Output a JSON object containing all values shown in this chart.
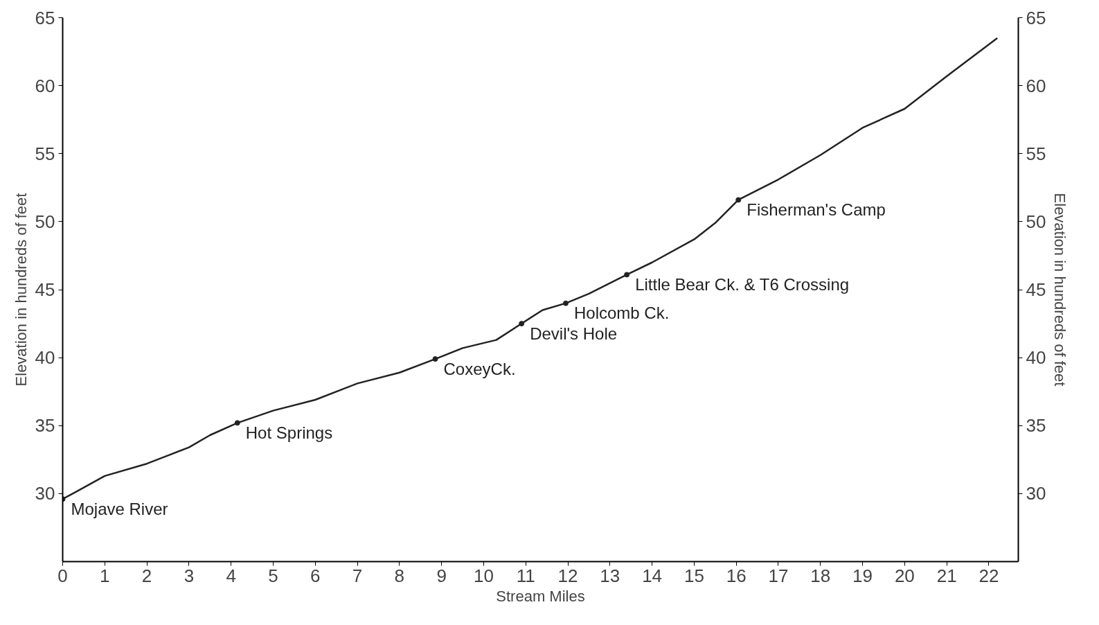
{
  "chart_data": {
    "type": "line",
    "xlabel": "Stream Miles",
    "ylabel": "Elevation in hundreds of feet",
    "y2label": "Elevation in hundreds of feet",
    "x": [
      0,
      0.3,
      1,
      2,
      2.5,
      3,
      3.5,
      4.15,
      5,
      6,
      7,
      8,
      8.85,
      9.5,
      10.3,
      10.9,
      11.4,
      11.95,
      12.5,
      13.4,
      14,
      15,
      15.5,
      16.05,
      17,
      18,
      19,
      19.5,
      20,
      21,
      22.2
    ],
    "series": [
      {
        "color": "#222222",
        "values": [
          29.6,
          30.1,
          31.3,
          32.2,
          32.8,
          33.4,
          34.3,
          35.2,
          36.1,
          36.9,
          38.1,
          38.9,
          39.9,
          40.7,
          41.3,
          42.5,
          43.5,
          44.0,
          44.7,
          46.1,
          47.0,
          48.7,
          49.9,
          51.6,
          53.1,
          54.9,
          56.9,
          57.6,
          58.3,
          60.7,
          63.5
        ]
      }
    ],
    "xlim": [
      0,
      22.7
    ],
    "xticks": [
      0,
      1,
      2,
      3,
      4,
      5,
      6,
      7,
      8,
      9,
      10,
      11,
      12,
      13,
      14,
      15,
      16,
      17,
      18,
      19,
      20,
      21,
      22
    ],
    "ylim": [
      25,
      65
    ],
    "yticks": [
      30,
      35,
      40,
      45,
      50,
      55,
      60,
      65
    ],
    "y2lim": [
      25,
      65
    ],
    "y2ticks": [
      30,
      35,
      40,
      45,
      50,
      55,
      60,
      65
    ],
    "marker": "none",
    "line_style": "solid",
    "grid": false,
    "annotations": [
      {
        "text": "Mojave River",
        "x": 0,
        "y": 29.6
      },
      {
        "text": "Hot Springs",
        "x": 4.15,
        "y": 35.2
      },
      {
        "text": "CoxeyCk.",
        "x": 8.85,
        "y": 39.9
      },
      {
        "text": "Devil's Hole",
        "x": 10.9,
        "y": 42.5
      },
      {
        "text": "Holcomb Ck.",
        "x": 11.95,
        "y": 44.0
      },
      {
        "text": "Little Bear Ck. & T6 Crossing",
        "x": 13.4,
        "y": 46.1
      },
      {
        "text": "Fisherman's Camp",
        "x": 16.05,
        "y": 51.6
      }
    ]
  }
}
